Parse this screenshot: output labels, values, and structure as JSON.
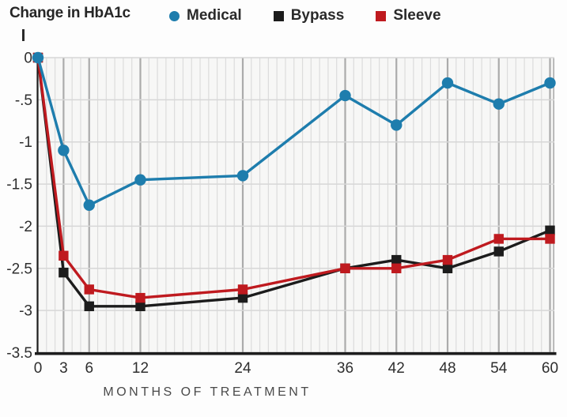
{
  "figure": {
    "title": "Change in HbA1c"
  },
  "legend": {
    "items": [
      {
        "label": "Medical",
        "marker": "circle",
        "color": "#1e7dad"
      },
      {
        "label": "Bypass",
        "marker": "square",
        "color": "#1c1c1c"
      },
      {
        "label": "Sleeve",
        "marker": "square",
        "color": "#bf1a1f"
      }
    ]
  },
  "chart_data": {
    "type": "line",
    "title": "Change in HbA1c",
    "xlabel": "MONTHS OF TREATMENT",
    "ylabel": "Change in HbA1c",
    "x": [
      0,
      3,
      6,
      12,
      24,
      36,
      42,
      48,
      54,
      60
    ],
    "x_tick_labels": [
      "0",
      "3",
      "6",
      "12",
      "24",
      "36",
      "42",
      "48",
      "54",
      "60"
    ],
    "y_ticks": [
      0,
      -0.5,
      -1,
      -1.5,
      -2,
      -2.5,
      -3,
      -3.5
    ],
    "y_tick_labels": [
      "0",
      "-.5",
      "-1",
      "-1.5",
      "-2",
      "-2.5",
      "-3",
      "-3.5"
    ],
    "xlim": [
      0,
      60.5
    ],
    "ylim": [
      -3.5,
      0
    ],
    "grid": "horizontal every 0.5; minor vertical every month; major vertical at labeled months",
    "legend_position": "top",
    "series": [
      {
        "name": "Medical",
        "color": "#1e7dad",
        "marker": "circle",
        "values": [
          0,
          -1.1,
          -1.75,
          -1.45,
          -1.4,
          -0.45,
          -0.8,
          -0.3,
          -0.55,
          -0.3
        ]
      },
      {
        "name": "Bypass",
        "color": "#1c1c1c",
        "marker": "square",
        "values": [
          0,
          -2.55,
          -2.95,
          -2.95,
          -2.85,
          -2.5,
          -2.4,
          -2.5,
          -2.3,
          -2.05
        ]
      },
      {
        "name": "Sleeve",
        "color": "#bf1a1f",
        "marker": "square",
        "values": [
          0,
          -2.35,
          -2.75,
          -2.85,
          -2.75,
          -2.5,
          -2.5,
          -2.4,
          -2.15,
          -2.15
        ]
      }
    ],
    "colors": {
      "plot_background": "#f7f7f6",
      "minor_grid": "#dcdcdc",
      "major_grid": "#ababab",
      "horizontal_grid": "#d7d7d7",
      "axis": "#1d1d1d",
      "tick_text": "#2e2e2e",
      "axis_title_text": "#4a4a4a"
    }
  }
}
